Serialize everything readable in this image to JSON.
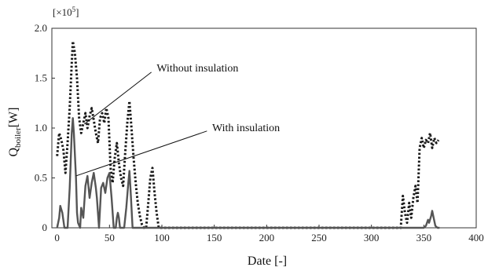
{
  "chart_data": {
    "type": "line",
    "title": "",
    "xlabel": "Date [-]",
    "ylabel_main": "Q",
    "ylabel_sub": "boiler",
    "ylabel_unit": "[W]",
    "multiplier_prefix": "[×10",
    "multiplier_exp": "5",
    "multiplier_suffix": "]",
    "xlim": [
      -5,
      400
    ],
    "ylim": [
      0,
      2.0
    ],
    "xticks": [
      0,
      50,
      100,
      150,
      200,
      250,
      300,
      350,
      400
    ],
    "yticks": [
      0,
      0.5,
      1.0,
      1.5,
      2.0
    ],
    "ytick_labels": [
      "0",
      "0.5",
      "1.0",
      "1.5",
      "2.0"
    ],
    "grid": false,
    "series": [
      {
        "name": "Without insulation",
        "style": "dotted",
        "color": "#1a1a1a",
        "points": [
          [
            0,
            0.72
          ],
          [
            2,
            0.95
          ],
          [
            4,
            0.88
          ],
          [
            6,
            0.78
          ],
          [
            8,
            0.55
          ],
          [
            10,
            0.85
          ],
          [
            12,
            1.2
          ],
          [
            14,
            1.65
          ],
          [
            15,
            1.87
          ],
          [
            17,
            1.75
          ],
          [
            19,
            1.5
          ],
          [
            21,
            1.1
          ],
          [
            23,
            0.95
          ],
          [
            25,
            1.05
          ],
          [
            27,
            1.15
          ],
          [
            29,
            1.0
          ],
          [
            31,
            1.12
          ],
          [
            33,
            1.2
          ],
          [
            35,
            1.08
          ],
          [
            37,
            0.95
          ],
          [
            39,
            0.85
          ],
          [
            41,
            1.1
          ],
          [
            43,
            1.15
          ],
          [
            45,
            1.05
          ],
          [
            47,
            1.2
          ],
          [
            49,
            1.1
          ],
          [
            51,
            0.6
          ],
          [
            53,
            0.45
          ],
          [
            55,
            0.7
          ],
          [
            57,
            0.85
          ],
          [
            59,
            0.65
          ],
          [
            61,
            0.5
          ],
          [
            63,
            0.42
          ],
          [
            65,
            0.75
          ],
          [
            67,
            1.05
          ],
          [
            69,
            1.27
          ],
          [
            71,
            1.0
          ],
          [
            73,
            0.7
          ],
          [
            75,
            0.45
          ],
          [
            77,
            0.25
          ],
          [
            79,
            0.12
          ],
          [
            81,
            0.03
          ],
          [
            83,
            0.0
          ],
          [
            85,
            0.0
          ],
          [
            87,
            0.25
          ],
          [
            89,
            0.5
          ],
          [
            91,
            0.6
          ],
          [
            93,
            0.35
          ],
          [
            95,
            0.15
          ],
          [
            97,
            0.0
          ],
          [
            328,
            0.0
          ],
          [
            330,
            0.32
          ],
          [
            332,
            0.15
          ],
          [
            334,
            0.05
          ],
          [
            336,
            0.25
          ],
          [
            338,
            0.1
          ],
          [
            340,
            0.3
          ],
          [
            342,
            0.42
          ],
          [
            344,
            0.25
          ],
          [
            346,
            0.8
          ],
          [
            348,
            0.9
          ],
          [
            350,
            0.8
          ],
          [
            352,
            0.88
          ],
          [
            354,
            0.85
          ],
          [
            356,
            0.95
          ],
          [
            358,
            0.8
          ],
          [
            360,
            0.9
          ],
          [
            362,
            0.85
          ],
          [
            364,
            0.88
          ]
        ]
      },
      {
        "name": "With insulation",
        "style": "solid",
        "color": "#555555",
        "points": [
          [
            0,
            0.0
          ],
          [
            2,
            0.1
          ],
          [
            3,
            0.22
          ],
          [
            5,
            0.15
          ],
          [
            7,
            0.0
          ],
          [
            10,
            0.0
          ],
          [
            12,
            0.4
          ],
          [
            14,
            0.95
          ],
          [
            15,
            1.1
          ],
          [
            16,
            0.95
          ],
          [
            18,
            0.5
          ],
          [
            19,
            0.15
          ],
          [
            20,
            0.05
          ],
          [
            22,
            0.0
          ],
          [
            23,
            0.2
          ],
          [
            25,
            0.1
          ],
          [
            27,
            0.42
          ],
          [
            29,
            0.52
          ],
          [
            31,
            0.3
          ],
          [
            33,
            0.45
          ],
          [
            35,
            0.55
          ],
          [
            37,
            0.4
          ],
          [
            38,
            0.3
          ],
          [
            40,
            0.0
          ],
          [
            42,
            0.4
          ],
          [
            44,
            0.45
          ],
          [
            46,
            0.35
          ],
          [
            48,
            0.5
          ],
          [
            50,
            0.55
          ],
          [
            52,
            0.3
          ],
          [
            54,
            0.0
          ],
          [
            56,
            0.0
          ],
          [
            57,
            0.1
          ],
          [
            58,
            0.15
          ],
          [
            59,
            0.1
          ],
          [
            60,
            0.0
          ],
          [
            62,
            0.0
          ],
          [
            64,
            0.0
          ],
          [
            66,
            0.2
          ],
          [
            68,
            0.45
          ],
          [
            69,
            0.57
          ],
          [
            70,
            0.4
          ],
          [
            72,
            0.0
          ],
          [
            80,
            0.0
          ],
          [
            350,
            0.0
          ],
          [
            352,
            0.02
          ],
          [
            354,
            0.08
          ],
          [
            355,
            0.05
          ],
          [
            357,
            0.12
          ],
          [
            358,
            0.17
          ],
          [
            359,
            0.12
          ],
          [
            361,
            0.02
          ],
          [
            363,
            0.0
          ],
          [
            365,
            0.0
          ]
        ]
      }
    ],
    "annotations": [
      {
        "text": "Without insulation",
        "x": 95,
        "y": 1.6,
        "pointer_from": [
          90,
          1.56
        ],
        "pointer_to": [
          26,
          1.04
        ]
      },
      {
        "text": "With insulation",
        "x": 148,
        "y": 1.0,
        "pointer_from": [
          143,
          0.97
        ],
        "pointer_to": [
          18,
          0.52
        ]
      }
    ]
  }
}
